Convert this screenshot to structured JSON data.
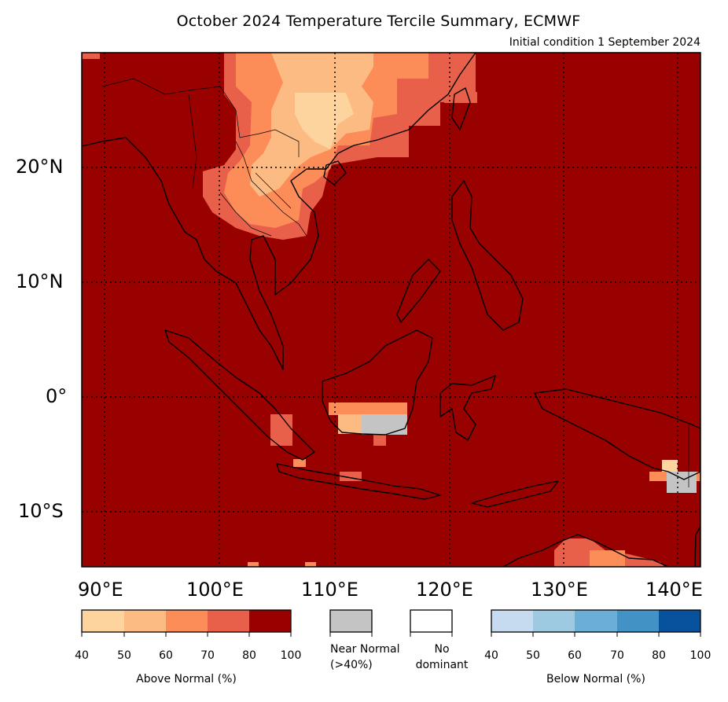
{
  "title": "October 2024 Temperature Tercile Summary, ECMWF",
  "subtitle": "Initial condition 1 September 2024",
  "colors": {
    "ocean_land_base": "#990000",
    "near_normal": "#c4c4c4",
    "no_dominant": "#ffffff",
    "above_normal": [
      "#fdd49e",
      "#fdbb84",
      "#fc8d59",
      "#e9604a",
      "#990000"
    ],
    "below_normal": [
      "#c6dbef",
      "#9ecae1",
      "#6baed6",
      "#4292c6",
      "#08519c"
    ]
  },
  "map": {
    "lon_range": [
      88,
      142
    ],
    "lat_range": [
      -15,
      30
    ],
    "lon_labels": [
      "90°E",
      "100°E",
      "110°E",
      "120°E",
      "130°E",
      "140°E"
    ],
    "lat_labels": [
      "20°N",
      "10°N",
      "0°",
      "10°S"
    ],
    "grid": "dotted"
  },
  "legend": {
    "above": {
      "ticks": [
        "40",
        "50",
        "60",
        "70",
        "80",
        "100"
      ],
      "caption": "Above Normal (%)"
    },
    "near": {
      "caption_line1": "Near Normal",
      "caption_line2": "(>40%)"
    },
    "none": {
      "caption_line1": "No",
      "caption_line2": "dominant"
    },
    "below": {
      "ticks": [
        "40",
        "50",
        "60",
        "70",
        "80",
        "100"
      ],
      "caption": "Below Normal (%)"
    }
  }
}
